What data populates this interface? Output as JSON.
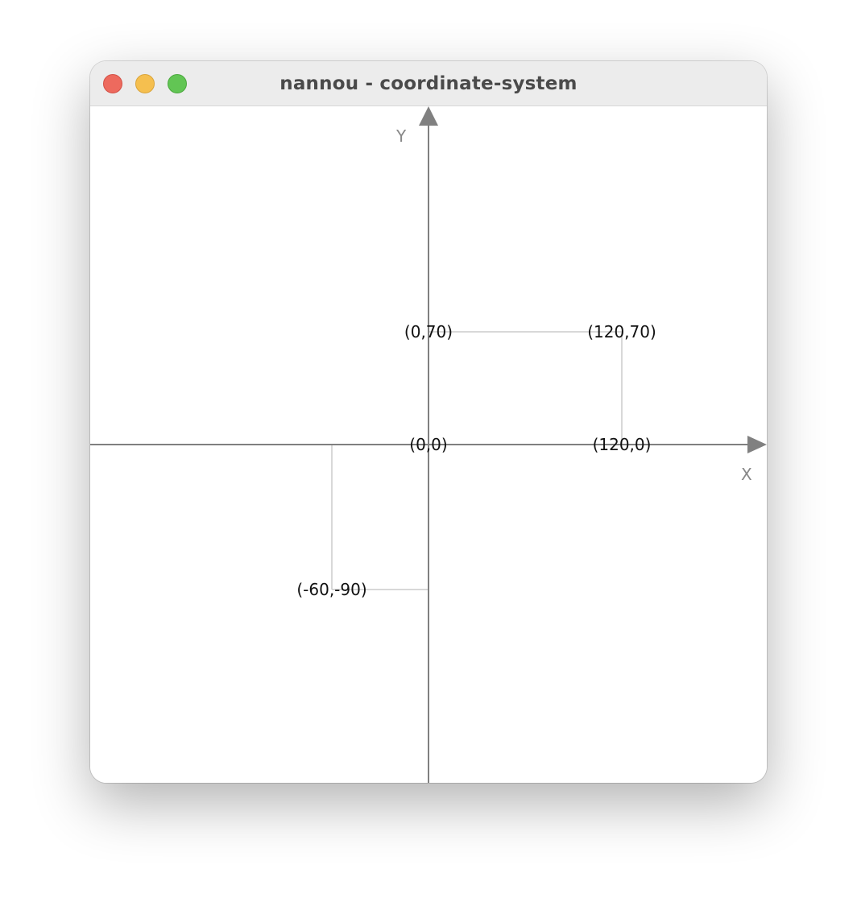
{
  "window": {
    "title": "nannou - coordinate-system",
    "controls": {
      "close": {
        "icon": "close-dot-icon",
        "color": "#ed6a5e",
        "border": "#d35046"
      },
      "minimize": {
        "icon": "minimize-dot-icon",
        "color": "#f5bf4f",
        "border": "#d9a43a"
      },
      "maximize": {
        "icon": "maximize-dot-icon",
        "color": "#62c554",
        "border": "#4ba83e"
      }
    }
  },
  "canvas": {
    "background": "#ffffff",
    "axis_color": "#808080",
    "guide_color": "#cccccc",
    "axes": {
      "x_label": "X",
      "y_label": "Y"
    },
    "points": [
      {
        "id": "origin",
        "label": "(0,0)",
        "x": 0,
        "y": 0
      },
      {
        "id": "p-0-70",
        "label": "(0,70)",
        "x": 0,
        "y": 70
      },
      {
        "id": "p-120-70",
        "label": "(120,70)",
        "x": 120,
        "y": 70
      },
      {
        "id": "p-120-0",
        "label": "(120,0)",
        "x": 120,
        "y": 0
      },
      {
        "id": "p-neg60-neg90",
        "label": "(-60,-90)",
        "x": -60,
        "y": -90
      }
    ]
  }
}
